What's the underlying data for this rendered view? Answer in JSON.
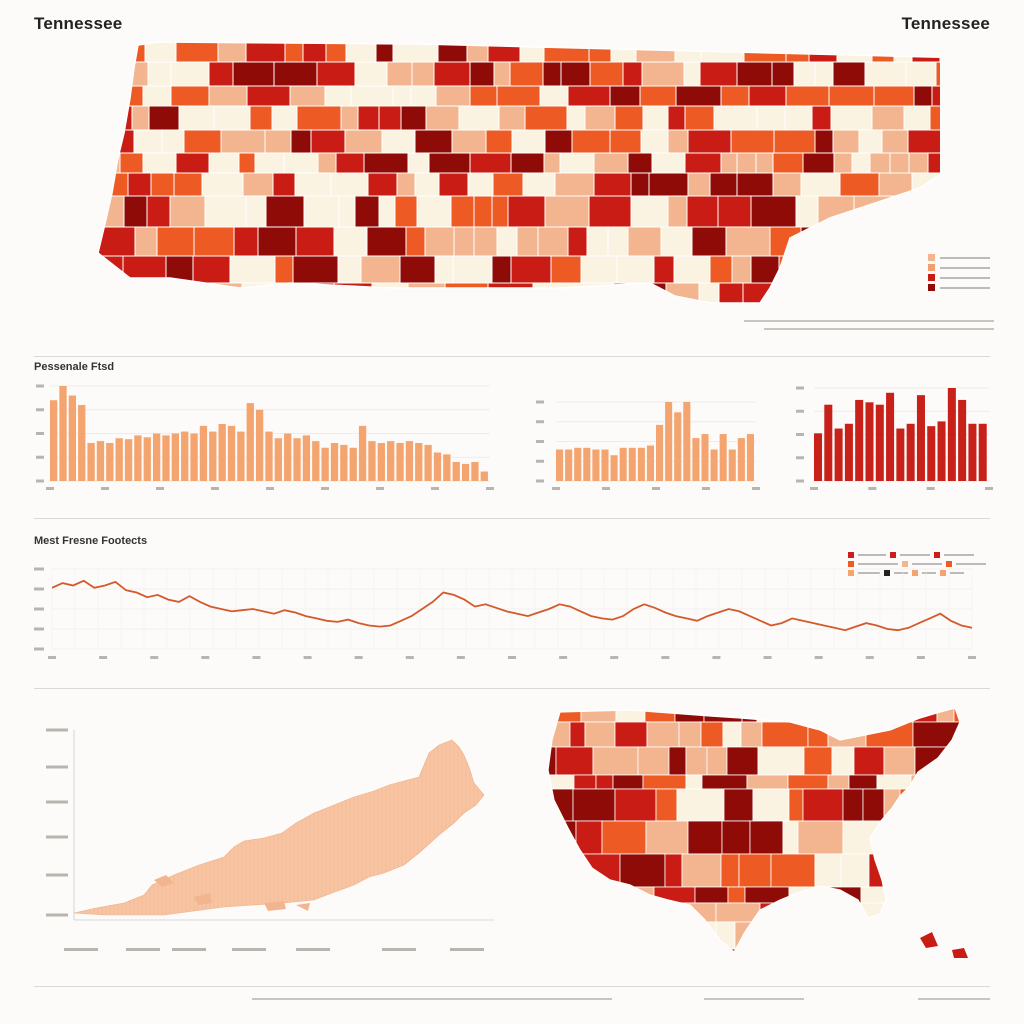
{
  "header": {
    "title_left": "Tennessee",
    "title_right": "Tennessee"
  },
  "colors": {
    "c1": "#fbf3e1",
    "c2": "#f3b58f",
    "c3": "#ee5a24",
    "c4": "#c81c14",
    "c5": "#8e0b08",
    "bar_orange": "#f4a46e",
    "bar_red": "#c8211a",
    "line": "#d35a2a",
    "area": "#f7c5a3"
  },
  "sections": {
    "bars_title": "Pessenale Ftsd",
    "line_title": "Mest Fresne Footects"
  },
  "chart_data": [
    {
      "type": "heatmap",
      "title": "Tennessee",
      "legend_placement": "right",
      "grid": false
    },
    {
      "type": "bar",
      "series": [
        {
          "values": [
            85,
            100,
            90,
            80,
            40,
            42,
            40,
            45,
            44,
            48,
            46,
            50,
            48,
            50,
            52,
            50,
            58,
            52,
            60,
            58,
            52,
            82,
            75,
            52,
            45,
            50,
            45,
            48,
            42,
            35,
            40,
            38,
            35,
            58,
            42,
            40,
            42,
            40,
            42,
            40,
            38,
            30,
            28,
            20,
            18,
            20,
            10
          ]
        }
      ]
    },
    {
      "type": "bar",
      "series": [
        {
          "values": [
            55,
            55,
            58,
            58,
            55,
            55,
            45,
            58,
            58,
            58,
            62,
            98,
            138,
            120,
            138,
            75,
            82,
            55,
            82,
            55,
            75,
            82
          ]
        }
      ]
    },
    {
      "type": "bar",
      "series": [
        {
          "values": [
            100,
            160,
            110,
            120,
            170,
            165,
            160,
            185,
            110,
            120,
            180,
            115,
            125,
            195,
            170,
            120,
            120
          ]
        }
      ]
    },
    {
      "type": "line",
      "grid": true,
      "legend_placement": "top-right",
      "series": [
        {
          "values": [
            3.8,
            4.0,
            3.9,
            4.1,
            3.8,
            3.9,
            4.05,
            3.7,
            3.6,
            3.4,
            3.5,
            3.3,
            3.2,
            3.45,
            3.2,
            3.0,
            2.9,
            2.8,
            2.85,
            2.9,
            2.8,
            2.7,
            2.85,
            2.75,
            2.6,
            2.5,
            2.4,
            2.35,
            2.45,
            2.3,
            2.2,
            2.15,
            2.2,
            2.4,
            2.6,
            2.9,
            3.2,
            3.6,
            3.5,
            3.3,
            3.0,
            3.1,
            2.95,
            2.8,
            2.7,
            2.6,
            2.75,
            2.9,
            3.1,
            3.0,
            2.8,
            2.6,
            2.5,
            2.45,
            2.6,
            2.9,
            3.1,
            2.95,
            2.75,
            2.6,
            2.5,
            2.4,
            2.6,
            2.75,
            2.9,
            2.8,
            2.6,
            2.4,
            2.2,
            2.3,
            2.5,
            2.4,
            2.3,
            2.2,
            2.1,
            2.0,
            2.15,
            2.3,
            2.2,
            2.05,
            2.0,
            2.1,
            2.3,
            2.5,
            2.7,
            2.4,
            2.2,
            2.1
          ]
        }
      ]
    },
    {
      "type": "area",
      "grid": false
    },
    {
      "type": "heatmap",
      "grid": false
    }
  ]
}
